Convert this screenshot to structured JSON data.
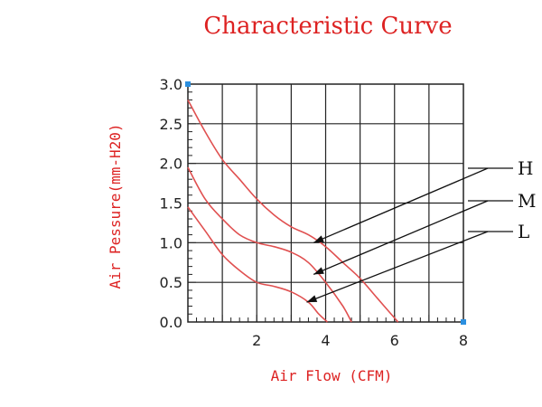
{
  "chart_data": {
    "type": "line",
    "title": "Characteristic Curve",
    "xlabel": "Air Flow (CFM)",
    "ylabel": "Air Pessure(mm-H20)",
    "xlim": [
      0,
      8
    ],
    "ylim": [
      0,
      3.0
    ],
    "x_ticks": [
      2,
      4,
      6,
      8
    ],
    "x_tick_labels": [
      "2",
      "4",
      "6",
      "8"
    ],
    "y_ticks": [
      0,
      0.5,
      1.0,
      1.5,
      2.0,
      2.5,
      3.0
    ],
    "y_tick_labels": [
      "0.0",
      "0.5",
      "1.0",
      "1.5",
      "2.0",
      "2.5",
      "3.0"
    ],
    "grid": true,
    "line_color": "#e05050",
    "label_color": "#dd2222",
    "series": [
      {
        "name": "H",
        "points": [
          [
            0,
            2.8
          ],
          [
            0.5,
            2.4
          ],
          [
            1,
            2.05
          ],
          [
            1.5,
            1.8
          ],
          [
            2,
            1.55
          ],
          [
            2.5,
            1.35
          ],
          [
            3,
            1.2
          ],
          [
            3.5,
            1.1
          ],
          [
            4,
            0.95
          ],
          [
            4.5,
            0.75
          ],
          [
            5,
            0.55
          ],
          [
            5.5,
            0.3
          ],
          [
            6,
            0.05
          ],
          [
            6.1,
            0
          ]
        ],
        "arrow_to": [
          3.65,
          1.0
        ]
      },
      {
        "name": "M",
        "points": [
          [
            0,
            1.95
          ],
          [
            0.5,
            1.55
          ],
          [
            1,
            1.3
          ],
          [
            1.5,
            1.1
          ],
          [
            2,
            1.0
          ],
          [
            2.5,
            0.95
          ],
          [
            3,
            0.88
          ],
          [
            3.5,
            0.75
          ],
          [
            4,
            0.5
          ],
          [
            4.5,
            0.2
          ],
          [
            4.75,
            0
          ]
        ],
        "arrow_to": [
          3.65,
          0.6
        ]
      },
      {
        "name": "L",
        "points": [
          [
            0,
            1.45
          ],
          [
            0.5,
            1.15
          ],
          [
            1,
            0.85
          ],
          [
            1.5,
            0.65
          ],
          [
            2,
            0.5
          ],
          [
            2.5,
            0.45
          ],
          [
            3,
            0.38
          ],
          [
            3.5,
            0.25
          ],
          [
            3.8,
            0.1
          ],
          [
            4.05,
            0
          ]
        ],
        "arrow_to": [
          3.45,
          0.25
        ]
      }
    ]
  }
}
